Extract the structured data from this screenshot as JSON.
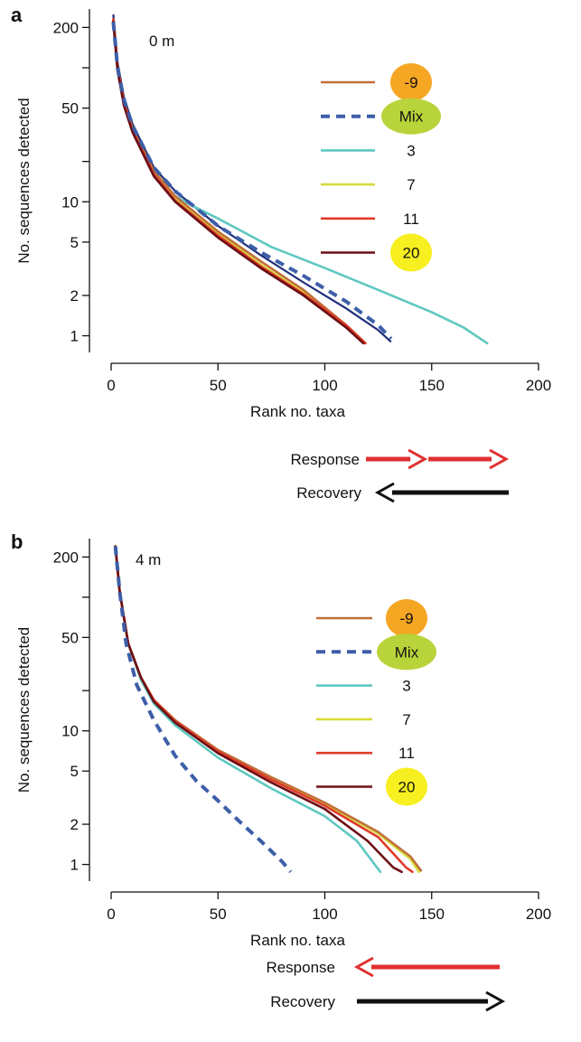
{
  "chart_data": [
    {
      "type": "line",
      "panel_label": "a",
      "title": "0 m",
      "xlabel": "Rank no. taxa",
      "ylabel": "No. sequences detected",
      "x_scale": "linear",
      "y_scale": "log",
      "xlim": [
        0,
        200
      ],
      "ylim": [
        0.85,
        250
      ],
      "x_ticks": [
        0,
        50,
        100,
        150,
        200
      ],
      "y_ticks": [
        1,
        2,
        5,
        10,
        50,
        200
      ],
      "y_tick_labels": [
        "1",
        "2",
        "5",
        "10",
        "50",
        "200"
      ],
      "y_minor_ticks": [
        20,
        100
      ],
      "legend_position": "upper-right",
      "series": [
        {
          "name": "-9",
          "color": "#c0703a",
          "dash": false,
          "highlight": "#f5a623",
          "points": [
            [
              1,
              230
            ],
            [
              3,
              100
            ],
            [
              6,
              55
            ],
            [
              10,
              35
            ],
            [
              20,
              17
            ],
            [
              30,
              11
            ],
            [
              50,
              6
            ],
            [
              70,
              3.6
            ],
            [
              90,
              2.2
            ],
            [
              110,
              1.2
            ],
            [
              119,
              0.88
            ]
          ]
        },
        {
          "name": "Mix",
          "color": "#3d5ea8",
          "dash": true,
          "highlight": "#b8d43a",
          "points": [
            [
              1,
              220
            ],
            [
              3,
              100
            ],
            [
              6,
              58
            ],
            [
              10,
              37
            ],
            [
              20,
              18
            ],
            [
              30,
              12
            ],
            [
              50,
              6.6
            ],
            [
              70,
              4.2
            ],
            [
              90,
              2.8
            ],
            [
              110,
              1.8
            ],
            [
              125,
              1.2
            ],
            [
              131,
              0.95
            ]
          ]
        },
        {
          "name": "3",
          "color": "#5ec8c0",
          "dash": false,
          "points": [
            [
              1,
              230
            ],
            [
              3,
              100
            ],
            [
              6,
              55
            ],
            [
              10,
              35
            ],
            [
              20,
              16
            ],
            [
              30,
              11
            ],
            [
              40,
              9
            ],
            [
              50,
              7.5
            ],
            [
              75,
              4.6
            ],
            [
              100,
              3.2
            ],
            [
              125,
              2.2
            ],
            [
              150,
              1.5
            ],
            [
              165,
              1.15
            ],
            [
              176,
              0.88
            ]
          ]
        },
        {
          "name": "7",
          "color": "#d6dc3a",
          "dash": false,
          "points": [
            [
              1,
              230
            ],
            [
              3,
              100
            ],
            [
              6,
              55
            ],
            [
              10,
              35
            ],
            [
              20,
              16
            ],
            [
              30,
              10.5
            ],
            [
              50,
              5.8
            ],
            [
              70,
              3.4
            ],
            [
              90,
              2.1
            ],
            [
              110,
              1.2
            ],
            [
              119,
              0.88
            ]
          ]
        },
        {
          "name": "11",
          "color": "#e03a2a",
          "dash": false,
          "points": [
            [
              1,
              230
            ],
            [
              3,
              100
            ],
            [
              6,
              55
            ],
            [
              10,
              34
            ],
            [
              20,
              16
            ],
            [
              30,
              10.2
            ],
            [
              50,
              5.6
            ],
            [
              70,
              3.3
            ],
            [
              90,
              2.05
            ],
            [
              110,
              1.2
            ],
            [
              119,
              0.88
            ]
          ]
        },
        {
          "name": "20",
          "color": "#6b0f14",
          "dash": false,
          "highlight": "#f7ef1f",
          "points": [
            [
              1,
              220
            ],
            [
              3,
              95
            ],
            [
              6,
              52
            ],
            [
              10,
              33
            ],
            [
              20,
              15.5
            ],
            [
              30,
              10
            ],
            [
              50,
              5.4
            ],
            [
              70,
              3.2
            ],
            [
              90,
              2
            ],
            [
              110,
              1.15
            ],
            [
              118,
              0.88
            ]
          ]
        }
      ],
      "extra_lines": [
        {
          "color": "#1e2f7a",
          "dash": false,
          "points": [
            [
              1,
              250
            ],
            [
              3,
              110
            ],
            [
              6,
              60
            ],
            [
              10,
              38
            ],
            [
              20,
              18
            ],
            [
              30,
              12
            ],
            [
              50,
              6.6
            ],
            [
              70,
              4
            ],
            [
              90,
              2.5
            ],
            [
              110,
              1.6
            ],
            [
              125,
              1.1
            ],
            [
              131,
              0.9
            ]
          ]
        }
      ],
      "arrows": [
        {
          "label": "Response",
          "color": "#e03030",
          "direction": "right",
          "double": true
        },
        {
          "label": "Recovery",
          "color": "#111111",
          "direction": "left",
          "double": false
        }
      ]
    },
    {
      "type": "line",
      "panel_label": "b",
      "title": "4 m",
      "xlabel": "Rank no. taxa",
      "ylabel": "No. sequences detected",
      "x_scale": "linear",
      "y_scale": "log",
      "xlim": [
        0,
        200
      ],
      "ylim": [
        0.85,
        250
      ],
      "x_ticks": [
        0,
        50,
        100,
        150,
        200
      ],
      "y_ticks": [
        1,
        2,
        5,
        10,
        50,
        200
      ],
      "y_tick_labels": [
        "1",
        "2",
        "5",
        "10",
        "50",
        "200"
      ],
      "y_minor_ticks": [
        20,
        100
      ],
      "legend_position": "upper-right",
      "series": [
        {
          "name": "-9",
          "color": "#c0703a",
          "dash": false,
          "highlight": "#f5a623",
          "points": [
            [
              2,
              240
            ],
            [
              4,
              110
            ],
            [
              8,
              45
            ],
            [
              14,
              25
            ],
            [
              20,
              17
            ],
            [
              30,
              12
            ],
            [
              50,
              7.2
            ],
            [
              75,
              4.5
            ],
            [
              100,
              2.9
            ],
            [
              125,
              1.75
            ],
            [
              140,
              1.15
            ],
            [
              145,
              0.9
            ]
          ]
        },
        {
          "name": "Mix",
          "color": "#3d5ea8",
          "dash": true,
          "highlight": "#b8d43a",
          "points": [
            [
              2,
              240
            ],
            [
              4,
              110
            ],
            [
              7,
              45
            ],
            [
              12,
              22
            ],
            [
              20,
              12
            ],
            [
              30,
              6.5
            ],
            [
              40,
              4.2
            ],
            [
              50,
              3
            ],
            [
              60,
              2.1
            ],
            [
              70,
              1.5
            ],
            [
              80,
              1.05
            ],
            [
              84,
              0.88
            ]
          ]
        },
        {
          "name": "3",
          "color": "#5ec8c0",
          "dash": false,
          "points": [
            [
              2,
              240
            ],
            [
              4,
              110
            ],
            [
              8,
              45
            ],
            [
              14,
              24
            ],
            [
              20,
              16
            ],
            [
              30,
              11
            ],
            [
              50,
              6.3
            ],
            [
              75,
              3.7
            ],
            [
              100,
              2.3
            ],
            [
              115,
              1.5
            ],
            [
              126,
              0.88
            ]
          ]
        },
        {
          "name": "7",
          "color": "#d6dc3a",
          "dash": false,
          "points": [
            [
              2,
              240
            ],
            [
              4,
              110
            ],
            [
              8,
              45
            ],
            [
              14,
              25
            ],
            [
              20,
              17
            ],
            [
              30,
              12
            ],
            [
              50,
              7.1
            ],
            [
              75,
              4.4
            ],
            [
              100,
              2.85
            ],
            [
              125,
              1.7
            ],
            [
              140,
              1.1
            ],
            [
              144,
              0.88
            ]
          ]
        },
        {
          "name": "11",
          "color": "#e03a2a",
          "dash": false,
          "points": [
            [
              2,
              240
            ],
            [
              4,
              110
            ],
            [
              8,
              45
            ],
            [
              14,
              25
            ],
            [
              20,
              17
            ],
            [
              30,
              11.8
            ],
            [
              50,
              7
            ],
            [
              75,
              4.3
            ],
            [
              100,
              2.75
            ],
            [
              125,
              1.6
            ],
            [
              138,
              0.95
            ],
            [
              141,
              0.88
            ]
          ]
        },
        {
          "name": "20",
          "color": "#6b0f14",
          "dash": false,
          "highlight": "#f7ef1f",
          "points": [
            [
              2,
              240
            ],
            [
              4,
              110
            ],
            [
              8,
              45
            ],
            [
              14,
              25
            ],
            [
              20,
              16.5
            ],
            [
              30,
              11.5
            ],
            [
              50,
              6.8
            ],
            [
              75,
              4.1
            ],
            [
              100,
              2.6
            ],
            [
              120,
              1.5
            ],
            [
              132,
              0.95
            ],
            [
              136,
              0.88
            ]
          ]
        }
      ],
      "extra_lines": [],
      "arrows": [
        {
          "label": "Response",
          "color": "#e03030",
          "direction": "left",
          "double": false
        },
        {
          "label": "Recovery",
          "color": "#111111",
          "direction": "right",
          "double": false
        }
      ]
    }
  ]
}
